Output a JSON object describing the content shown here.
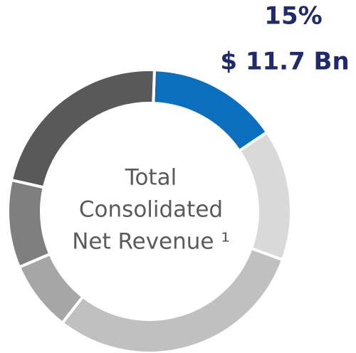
{
  "chart_data": {
    "type": "pie",
    "donut": true,
    "values": [
      15,
      15,
      30,
      8,
      10,
      22
    ],
    "value_labels": [
      "15%",
      null,
      null,
      null,
      null,
      null
    ],
    "colors": [
      "#0b6fbf",
      "#d9d9d9",
      "#c0c0c0",
      "#a6a6a6",
      "#7f7f7f",
      "#595959"
    ],
    "annotation": "$ 11.7 Bn",
    "center_label": [
      "Total",
      "Consolidated",
      "Net Revenue ¹"
    ]
  }
}
